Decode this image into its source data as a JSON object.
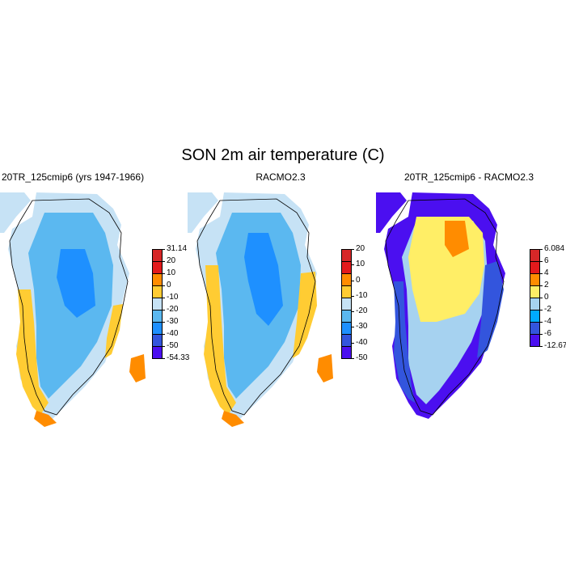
{
  "title": "SON 2m air temperature (C)",
  "panels": [
    {
      "title": "20TR_125cmip6 (yrs 1947-1966)",
      "colorbar": {
        "colors": [
          "#d62728",
          "#e31a1c",
          "#ff8c00",
          "#ffcc33",
          "#c6e2f5",
          "#5bb8f0",
          "#1e90ff",
          "#3355dd",
          "#4b0ff0"
        ],
        "labels": [
          "31.14",
          "20",
          "10",
          "0",
          "-10",
          "-20",
          "-30",
          "-40",
          "-50",
          "-54.33"
        ]
      },
      "zones": {
        "outer": "#c6e2f5",
        "mid": "#5bb8f0",
        "core": "#1e90ff",
        "coast": "#ffcc33",
        "south": "#ff8c00"
      }
    },
    {
      "title": "RACMO2.3",
      "colorbar": {
        "colors": [
          "#d62728",
          "#e31a1c",
          "#ff8c00",
          "#ffcc33",
          "#c6e2f5",
          "#5bb8f0",
          "#1e90ff",
          "#3355dd",
          "#4b0ff0"
        ],
        "labels": [
          "20",
          "10",
          "0",
          "-10",
          "-20",
          "-30",
          "-40",
          "-50"
        ]
      },
      "zones": {
        "outer": "#c6e2f5",
        "mid": "#5bb8f0",
        "core": "#1e90ff",
        "coast": "#ffcc33",
        "south": "#ff8c00"
      }
    },
    {
      "title": "20TR_125cmip6 - RACMO2.3",
      "colorbar": {
        "colors": [
          "#d62728",
          "#e31a1c",
          "#ff8c00",
          "#ffee66",
          "#a6d2f0",
          "#00aaff",
          "#3355dd",
          "#4b0ff0"
        ],
        "labels": [
          "6.084",
          "6",
          "4",
          "2",
          "0",
          "-2",
          "-4",
          "-6",
          "-12.672"
        ]
      },
      "zones": {
        "outer": "#4b0ff0",
        "mid": "#a6d2f0",
        "core": "#ffee66",
        "coast": "#3355dd",
        "south": "#ff8c00"
      }
    }
  ]
}
